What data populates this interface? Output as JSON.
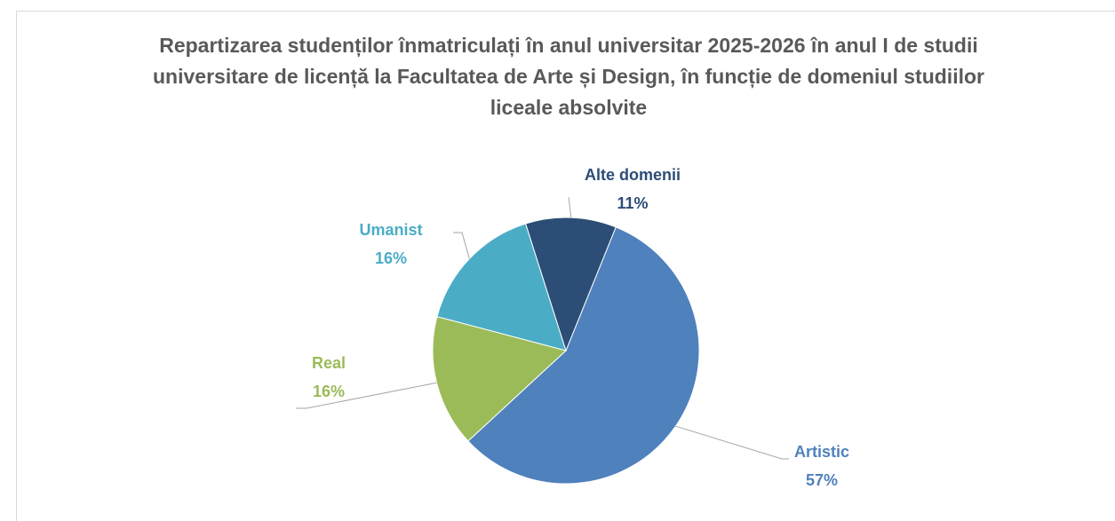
{
  "chart_data": {
    "type": "pie",
    "title": "Repartizarea studenților înmatriculați în anul universitar 2025-2026 în anul I de studii universitare de licență la Facultatea de Arte și Design, în funcție de domeniul studiilor liceale absolvite",
    "categories": [
      "Artistic",
      "Real",
      "Umanist",
      "Alte domenii"
    ],
    "values": [
      57,
      16,
      16,
      11
    ],
    "value_labels": [
      "57%",
      "16%",
      "16%",
      "11%"
    ],
    "colors": [
      "#4f81bd",
      "#9bbb59",
      "#4bacc6",
      "#2c4d75"
    ]
  }
}
